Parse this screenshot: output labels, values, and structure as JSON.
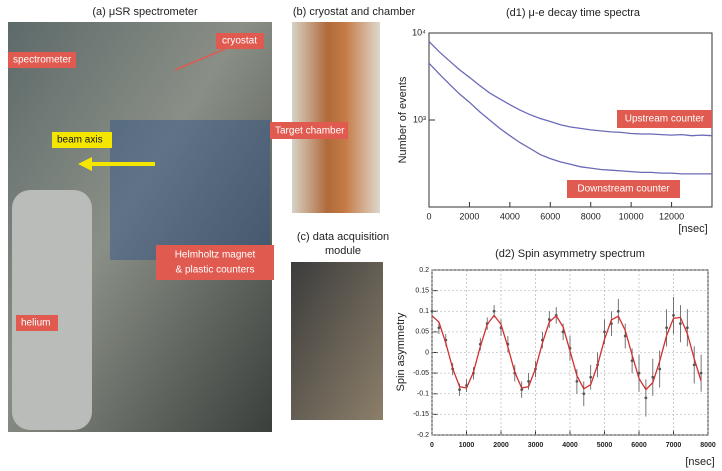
{
  "panels": [
    {
      "title": [
        "(a) μSR spectrometer"
      ],
      "labels": [
        "spectrometer",
        "cryostat",
        "beam axis",
        "Helmholtz magnet",
        "& plastic counters",
        "helium"
      ]
    },
    {
      "title": [
        "(b) cryostat and chamber"
      ],
      "labels": [
        "Target chamber"
      ]
    },
    {
      "title": [
        "(c) data acquisition",
        "module"
      ],
      "labels": []
    }
  ],
  "chart_data": [
    {
      "type": "line",
      "title": "(d1) μ-e decay time spectra",
      "y_label": "Number of events",
      "x_label": "[nsec]",
      "log_scale": true,
      "grid": false,
      "xlim": [
        0,
        14000
      ],
      "xticks": [
        0,
        2000,
        4000,
        6000,
        8000,
        10000,
        12000
      ],
      "ylim": [
        100,
        10000
      ],
      "yticks": [
        {
          "value": 10000,
          "label": "10⁴"
        },
        {
          "value": 1000,
          "label": "10³"
        }
      ],
      "x": [
        0,
        500,
        1000,
        1500,
        2000,
        2500,
        3000,
        3500,
        4000,
        4500,
        5000,
        5500,
        6000,
        6500,
        7000,
        7500,
        8000,
        8500,
        9000,
        9500,
        10000,
        10500,
        11000,
        11500,
        12000,
        12500,
        13000,
        13500,
        14000
      ],
      "series": [
        {
          "name": "Upstream counter",
          "color": "#6a6ab8",
          "values": [
            8000,
            6100,
            4800,
            3800,
            3100,
            2500,
            2050,
            1750,
            1500,
            1300,
            1150,
            1040,
            960,
            880,
            830,
            800,
            770,
            750,
            730,
            720,
            700,
            690,
            690,
            680,
            670,
            680,
            660,
            670,
            660
          ]
        },
        {
          "name": "Downstream counter",
          "color": "#6a6ab8",
          "values": [
            4500,
            3400,
            2600,
            2000,
            1600,
            1250,
            1000,
            800,
            660,
            550,
            470,
            400,
            360,
            330,
            310,
            290,
            280,
            270,
            265,
            260,
            255,
            250,
            250,
            245,
            245,
            240,
            240,
            240,
            240
          ]
        }
      ]
    },
    {
      "type": "scatter",
      "title": "(d2) Spin asymmetry spectrum",
      "y_label": "Spin asymmetry",
      "x_label": "[nsec]",
      "log_scale": false,
      "grid": true,
      "xlim": [
        0,
        8000
      ],
      "xticks": [
        0,
        1000,
        2000,
        3000,
        4000,
        5000,
        6000,
        7000,
        8000
      ],
      "ylim": [
        -0.2,
        0.2
      ],
      "yticks": [
        0.2,
        0.15,
        0.1,
        0.05,
        0,
        -0.05,
        -0.1,
        -0.15,
        -0.2
      ],
      "x": [
        0,
        200,
        400,
        600,
        800,
        1000,
        1200,
        1400,
        1600,
        1800,
        2000,
        2200,
        2400,
        2600,
        2800,
        3000,
        3200,
        3400,
        3600,
        3800,
        4000,
        4200,
        4400,
        4600,
        4800,
        5000,
        5200,
        5400,
        5600,
        5800,
        6000,
        6200,
        6400,
        6600,
        6800,
        7000,
        7200,
        7400,
        7600,
        7800
      ],
      "series": [
        {
          "kind": "points",
          "color": "#555555",
          "values": [
            0.1,
            0.06,
            0.03,
            -0.04,
            -0.09,
            -0.08,
            -0.05,
            0.02,
            0.07,
            0.1,
            0.06,
            0.02,
            -0.05,
            -0.09,
            -0.07,
            -0.04,
            0.03,
            0.08,
            0.09,
            0.05,
            0.01,
            -0.07,
            -0.1,
            -0.06,
            -0.03,
            0.05,
            0.07,
            0.1,
            0.04,
            -0.02,
            -0.05,
            -0.11,
            -0.06,
            -0.04,
            0.06,
            0.09,
            0.07,
            0.06,
            -0.03,
            -0.05
          ],
          "errors": [
            0.015,
            0.015,
            0.015,
            0.015,
            0.015,
            0.015,
            0.015,
            0.015,
            0.015,
            0.015,
            0.02,
            0.02,
            0.02,
            0.02,
            0.02,
            0.02,
            0.02,
            0.02,
            0.02,
            0.02,
            0.03,
            0.03,
            0.03,
            0.03,
            0.03,
            0.03,
            0.03,
            0.03,
            0.03,
            0.03,
            0.045,
            0.045,
            0.045,
            0.045,
            0.045,
            0.045,
            0.045,
            0.045,
            0.045,
            0.045
          ]
        },
        {
          "kind": "line",
          "color": "#d03030",
          "values": [
            0.089,
            0.074,
            0.023,
            -0.039,
            -0.083,
            -0.086,
            -0.048,
            0.014,
            0.068,
            0.09,
            0.068,
            0.013,
            -0.048,
            -0.086,
            -0.083,
            -0.039,
            0.023,
            0.074,
            0.089,
            0.062,
            0.004,
            -0.056,
            -0.088,
            -0.078,
            -0.03,
            0.032,
            0.079,
            0.088,
            0.054,
            -0.006,
            -0.063,
            -0.09,
            -0.073,
            -0.021,
            0.041,
            0.083,
            0.085,
            0.046,
            -0.015,
            -0.069
          ]
        }
      ]
    }
  ]
}
